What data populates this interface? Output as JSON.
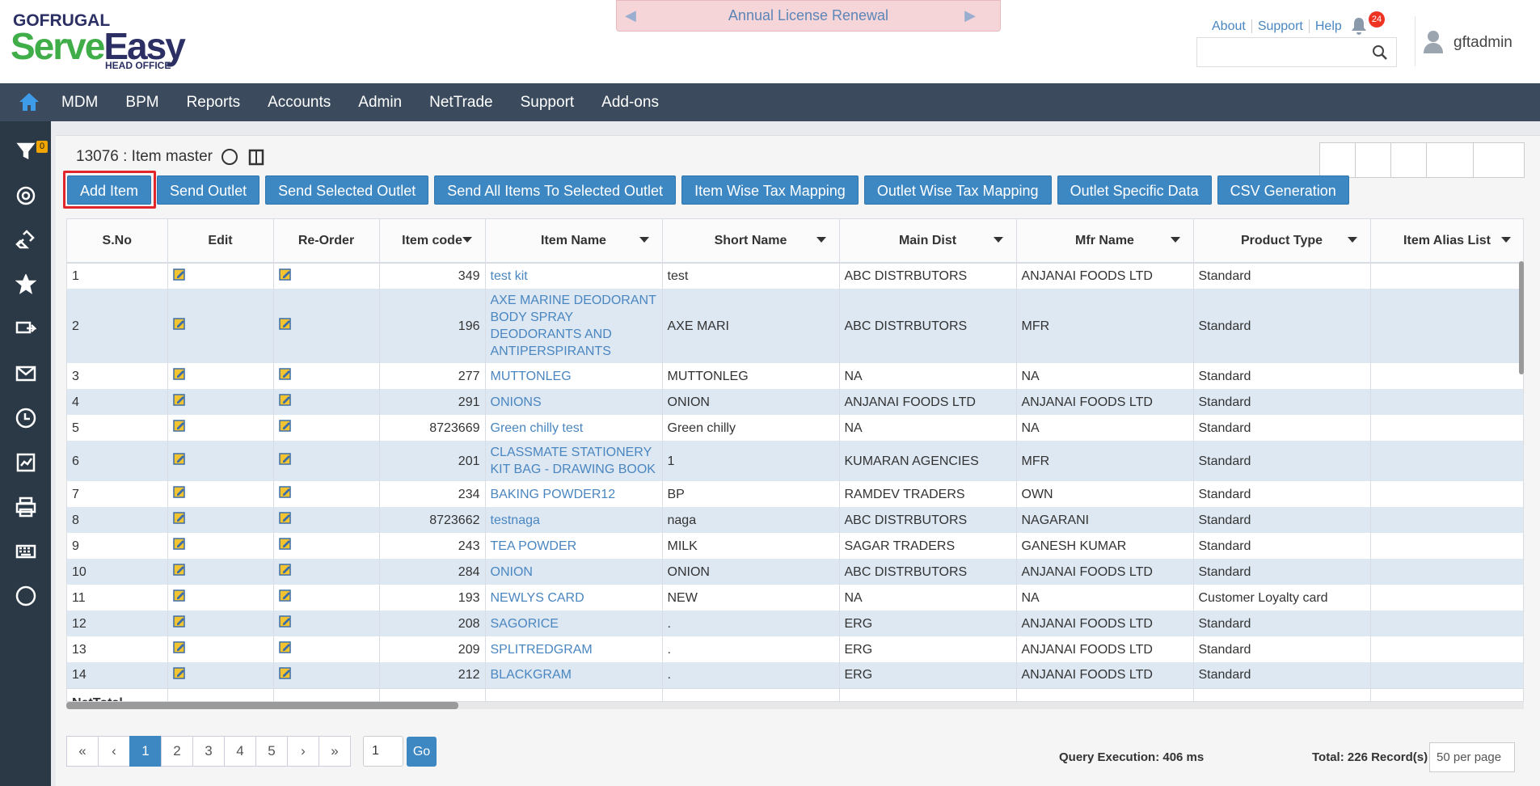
{
  "header": {
    "brand": "GOFRUGAL",
    "product_a": "Serve",
    "product_b": "Easy",
    "product_sub": "HEAD OFFICE",
    "banner": "Annual License Renewal",
    "links": [
      "About",
      "Support",
      "Help"
    ],
    "notification_count": 24,
    "user": "gftadmin"
  },
  "nav": [
    "MDM",
    "BPM",
    "Reports",
    "Accounts",
    "Admin",
    "NetTrade",
    "Support",
    "Add-ons"
  ],
  "sidebar": {
    "filter_count": 0
  },
  "page": {
    "title": "13076 : Item master",
    "buttons": [
      "Add Item",
      "Send Outlet",
      "Send Selected Outlet",
      "Send All Items To Selected Outlet",
      "Item Wise Tax Mapping",
      "Outlet Wise Tax Mapping",
      "Outlet Specific Data",
      "CSV Generation"
    ]
  },
  "table": {
    "columns": [
      "S.No",
      "Edit",
      "Re-Order",
      "Item code",
      "Item Name",
      "Short Name",
      "Main Dist",
      "Mfr Name",
      "Product Type",
      "Item Alias List"
    ],
    "rows": [
      [
        1,
        349,
        "test kit",
        "test",
        "ABC DISTRBUTORS",
        "ANJANAI FOODS LTD",
        "Standard"
      ],
      [
        2,
        196,
        "AXE MARINE DEODORANT BODY SPRAY DEODORANTS AND ANTIPERSPIRANTS",
        "AXE MARI",
        "ABC DISTRBUTORS",
        "MFR",
        "Standard"
      ],
      [
        3,
        277,
        "MUTTONLEG",
        "MUTTONLEG",
        "NA",
        "NA",
        "Standard"
      ],
      [
        4,
        291,
        "ONIONS",
        "ONION",
        "ANJANAI FOODS LTD",
        "ANJANAI FOODS LTD",
        "Standard"
      ],
      [
        5,
        8723669,
        "Green chilly test",
        "Green chilly",
        "NA",
        "NA",
        "Standard"
      ],
      [
        6,
        201,
        "CLASSMATE STATIONERY KIT BAG - DRAWING BOOK",
        "1",
        "KUMARAN AGENCIES",
        "MFR",
        "Standard"
      ],
      [
        7,
        234,
        "BAKING POWDER12",
        "BP",
        "RAMDEV TRADERS",
        "OWN",
        "Standard"
      ],
      [
        8,
        8723662,
        "testnaga",
        "naga",
        "ABC DISTRBUTORS",
        "NAGARANI",
        "Standard"
      ],
      [
        9,
        243,
        "TEA POWDER",
        "MILK",
        "SAGAR TRADERS",
        "GANESH KUMAR",
        "Standard"
      ],
      [
        10,
        284,
        "ONION",
        "ONION",
        "ABC DISTRBUTORS",
        "ANJANAI FOODS LTD",
        "Standard"
      ],
      [
        11,
        193,
        "NEWLYS CARD",
        "NEW",
        "NA",
        "NA",
        "Customer Loyalty card"
      ],
      [
        12,
        208,
        "SAGORICE",
        ".",
        "ERG",
        "ANJANAI FOODS LTD",
        "Standard"
      ],
      [
        13,
        209,
        "SPLITREDGRAM",
        ".",
        "ERG",
        "ANJANAI FOODS LTD",
        "Standard"
      ],
      [
        14,
        212,
        "BLACKGRAM",
        ".",
        "ERG",
        "ANJANAI FOODS LTD",
        "Standard"
      ]
    ],
    "total_label": "NetTotal"
  },
  "footer": {
    "pagination": [
      "«",
      "‹",
      "1",
      "2",
      "3",
      "4",
      "5",
      "›",
      "»"
    ],
    "page_input": "1",
    "go": "Go",
    "query": "Query Execution: 406 ms",
    "total": "Total: 226 Record(s)",
    "per_page": "50 per page"
  }
}
